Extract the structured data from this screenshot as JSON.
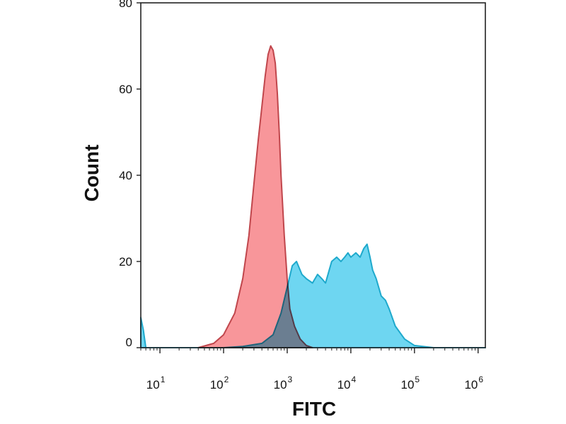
{
  "chart_data": {
    "type": "area",
    "title": "",
    "xlabel": "FITC",
    "ylabel": "Count",
    "x_scale": "log",
    "xlim": [
      5,
      1300000
    ],
    "ylim": [
      0,
      80
    ],
    "y_ticks": [
      "0",
      "20",
      "40",
      "60",
      "80"
    ],
    "x_ticks": [
      {
        "value": 10,
        "base": "10",
        "exp": "1"
      },
      {
        "value": 100,
        "base": "10",
        "exp": "2"
      },
      {
        "value": 1000,
        "base": "10",
        "exp": "3"
      },
      {
        "value": 10000,
        "base": "10",
        "exp": "4"
      },
      {
        "value": 100000,
        "base": "10",
        "exp": "5"
      },
      {
        "value": 1000000,
        "base": "10",
        "exp": "6"
      }
    ],
    "grid": false,
    "series": [
      {
        "fill": "#f8969a",
        "stroke": "#c0464c",
        "points": [
          [
            40,
            0
          ],
          [
            70,
            1
          ],
          [
            100,
            3
          ],
          [
            150,
            8
          ],
          [
            200,
            16
          ],
          [
            250,
            26
          ],
          [
            300,
            38
          ],
          [
            350,
            48
          ],
          [
            400,
            56
          ],
          [
            450,
            63
          ],
          [
            500,
            68
          ],
          [
            550,
            70
          ],
          [
            600,
            69
          ],
          [
            650,
            66
          ],
          [
            700,
            59
          ],
          [
            750,
            50
          ],
          [
            800,
            40
          ],
          [
            900,
            26
          ],
          [
            1000,
            16
          ],
          [
            1100,
            9
          ],
          [
            1300,
            5
          ],
          [
            1600,
            2
          ],
          [
            2000,
            0.5
          ],
          [
            2500,
            0
          ]
        ]
      },
      {
        "fill": "#62d3f0",
        "stroke": "#1ea9cc",
        "points": [
          [
            5,
            7
          ],
          [
            5.5,
            4
          ],
          [
            6,
            0
          ],
          [
            100,
            0
          ],
          [
            200,
            0.3
          ],
          [
            400,
            1
          ],
          [
            600,
            3
          ],
          [
            800,
            8
          ],
          [
            1000,
            14
          ],
          [
            1200,
            19
          ],
          [
            1400,
            20
          ],
          [
            1700,
            17
          ],
          [
            2000,
            16
          ],
          [
            2500,
            15
          ],
          [
            3000,
            17
          ],
          [
            3500,
            16
          ],
          [
            4000,
            15
          ],
          [
            5000,
            20
          ],
          [
            6000,
            21
          ],
          [
            7000,
            20
          ],
          [
            8000,
            21
          ],
          [
            9000,
            22
          ],
          [
            10000,
            21
          ],
          [
            12000,
            22
          ],
          [
            14000,
            21
          ],
          [
            16000,
            23
          ],
          [
            18000,
            24
          ],
          [
            20000,
            21
          ],
          [
            22000,
            18
          ],
          [
            25000,
            16
          ],
          [
            30000,
            12
          ],
          [
            35000,
            11
          ],
          [
            40000,
            9
          ],
          [
            50000,
            5
          ],
          [
            70000,
            2
          ],
          [
            100000,
            0.5
          ],
          [
            200000,
            0
          ],
          [
            1300000,
            0
          ]
        ]
      }
    ]
  }
}
